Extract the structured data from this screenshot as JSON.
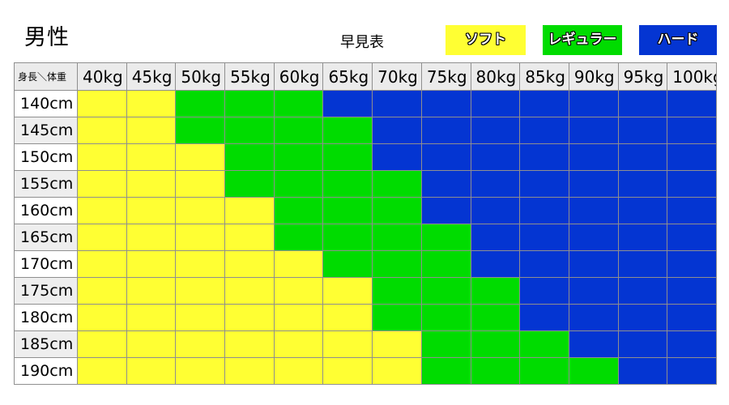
{
  "page": {
    "title": "男性",
    "subtitle": "早見表"
  },
  "legend": {
    "items": [
      {
        "key": "soft",
        "label": "ソフト",
        "color": "#ffff33"
      },
      {
        "key": "regular",
        "label": "レギュラー",
        "color": "#00dc00"
      },
      {
        "key": "hard",
        "label": "ハード",
        "color": "#0435d2"
      }
    ]
  },
  "colors": {
    "soft": "#ffff33",
    "regular": "#00dc00",
    "hard": "#0435d2",
    "grid": "#8f8f8f",
    "header_bg": "#ebebeb",
    "row_alt_bg": "#eeeeee"
  },
  "chart_data": {
    "type": "heatmap",
    "title": "男性 早見表",
    "corner_label": "身長＼体重",
    "columns": [
      "40kg",
      "45kg",
      "50kg",
      "55kg",
      "60kg",
      "65kg",
      "70kg",
      "75kg",
      "80kg",
      "85kg",
      "90kg",
      "95kg",
      "100kg"
    ],
    "rows": [
      "140cm",
      "145cm",
      "150cm",
      "155cm",
      "160cm",
      "165cm",
      "170cm",
      "175cm",
      "180cm",
      "185cm",
      "190cm"
    ],
    "legend_labels": [
      "ソフト",
      "レギュラー",
      "ハード"
    ],
    "legend_position": "top-right",
    "values": [
      [
        "soft",
        "soft",
        "regular",
        "regular",
        "regular",
        "hard",
        "hard",
        "hard",
        "hard",
        "hard",
        "hard",
        "hard",
        "hard"
      ],
      [
        "soft",
        "soft",
        "regular",
        "regular",
        "regular",
        "regular",
        "hard",
        "hard",
        "hard",
        "hard",
        "hard",
        "hard",
        "hard"
      ],
      [
        "soft",
        "soft",
        "soft",
        "regular",
        "regular",
        "regular",
        "hard",
        "hard",
        "hard",
        "hard",
        "hard",
        "hard",
        "hard"
      ],
      [
        "soft",
        "soft",
        "soft",
        "regular",
        "regular",
        "regular",
        "regular",
        "hard",
        "hard",
        "hard",
        "hard",
        "hard",
        "hard"
      ],
      [
        "soft",
        "soft",
        "soft",
        "soft",
        "regular",
        "regular",
        "regular",
        "hard",
        "hard",
        "hard",
        "hard",
        "hard",
        "hard"
      ],
      [
        "soft",
        "soft",
        "soft",
        "soft",
        "regular",
        "regular",
        "regular",
        "regular",
        "hard",
        "hard",
        "hard",
        "hard",
        "hard"
      ],
      [
        "soft",
        "soft",
        "soft",
        "soft",
        "soft",
        "regular",
        "regular",
        "regular",
        "hard",
        "hard",
        "hard",
        "hard",
        "hard"
      ],
      [
        "soft",
        "soft",
        "soft",
        "soft",
        "soft",
        "soft",
        "regular",
        "regular",
        "regular",
        "hard",
        "hard",
        "hard",
        "hard"
      ],
      [
        "soft",
        "soft",
        "soft",
        "soft",
        "soft",
        "soft",
        "regular",
        "regular",
        "regular",
        "hard",
        "hard",
        "hard",
        "hard"
      ],
      [
        "soft",
        "soft",
        "soft",
        "soft",
        "soft",
        "soft",
        "soft",
        "regular",
        "regular",
        "regular",
        "hard",
        "hard",
        "hard"
      ],
      [
        "soft",
        "soft",
        "soft",
        "soft",
        "soft",
        "soft",
        "soft",
        "regular",
        "regular",
        "regular",
        "regular",
        "hard",
        "hard"
      ]
    ]
  }
}
